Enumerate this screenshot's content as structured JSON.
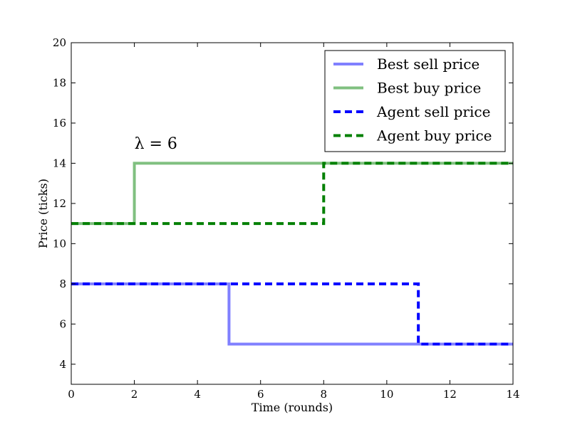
{
  "chart_data": {
    "type": "line",
    "step": "post",
    "xlabel": "Time (rounds)",
    "ylabel": "Price (ticks)",
    "xlim": [
      0,
      14
    ],
    "ylim": [
      3,
      20
    ],
    "xticks": [
      0,
      2,
      4,
      6,
      8,
      10,
      12,
      14
    ],
    "yticks": [
      4,
      6,
      8,
      10,
      12,
      14,
      16,
      18,
      20
    ],
    "grid": false,
    "legend_position": "top-right",
    "annotation": {
      "text": "λ = 6",
      "x": 2,
      "y": 15
    },
    "series": [
      {
        "name": "Best sell price",
        "color": "#8080ff",
        "style": "solid",
        "points": [
          [
            0,
            8
          ],
          [
            5,
            8
          ],
          [
            5,
            5
          ],
          [
            14,
            5
          ]
        ]
      },
      {
        "name": "Best buy price",
        "color": "#80c080",
        "style": "solid",
        "points": [
          [
            0,
            11
          ],
          [
            2,
            11
          ],
          [
            2,
            14
          ],
          [
            14,
            14
          ]
        ]
      },
      {
        "name": "Agent sell price",
        "color": "#0000ff",
        "style": "dashed",
        "points": [
          [
            0,
            8
          ],
          [
            11,
            8
          ],
          [
            11,
            5
          ],
          [
            14,
            5
          ]
        ]
      },
      {
        "name": "Agent buy price",
        "color": "#008000",
        "style": "dashed",
        "points": [
          [
            0,
            11
          ],
          [
            8,
            11
          ],
          [
            8,
            14
          ],
          [
            14,
            14
          ]
        ]
      }
    ]
  }
}
